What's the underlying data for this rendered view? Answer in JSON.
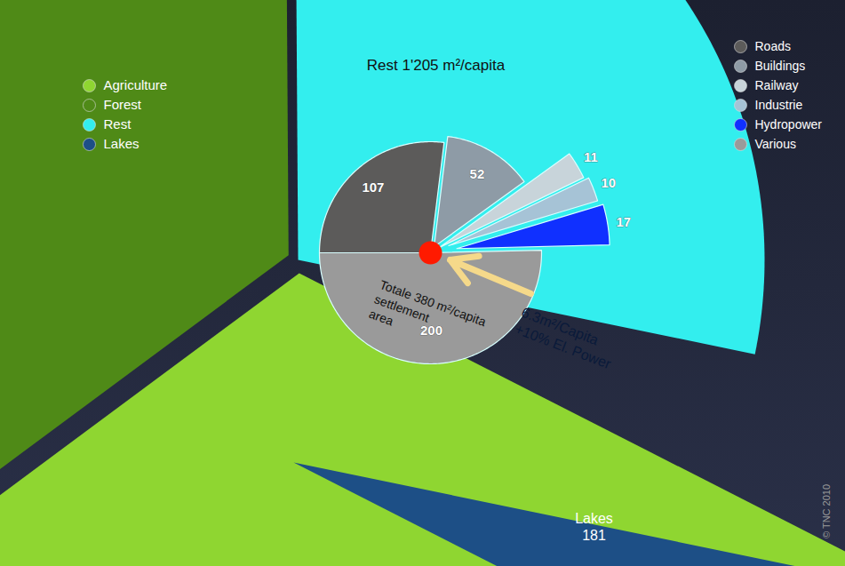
{
  "chart_data": [
    {
      "type": "pie",
      "categories": [
        "Agriculture",
        "Forest",
        "Rest",
        "Lakes"
      ],
      "values": [
        1375,
        1490,
        1205,
        181
      ],
      "colors": [
        "#8fd631",
        "#4f8a17",
        "#33eeee",
        "#1d4f86"
      ],
      "data_labels": true,
      "value_labels": [
        null,
        null,
        "Rest 1'205 m²/capita",
        "Lakes\n181"
      ],
      "legend": "left"
    },
    {
      "type": "pie",
      "categories": [
        "Roads",
        "Buildings",
        "Railway",
        "Industrie",
        "Hydropower",
        "Various"
      ],
      "values": [
        107,
        52,
        11,
        10,
        17,
        200
      ],
      "colors": [
        "#5c5b5a",
        "#8e9ba6",
        "#c8d4da",
        "#a6c3d6",
        "#1030ff",
        "#9a9a9a"
      ],
      "data_labels": true,
      "legend": "right",
      "annotations": [
        "Totale 380 m²/capita\nsettlement\narea",
        "6.3m²/Capita\n+10% El. Power"
      ]
    }
  ],
  "caption": "© TNC 2010"
}
